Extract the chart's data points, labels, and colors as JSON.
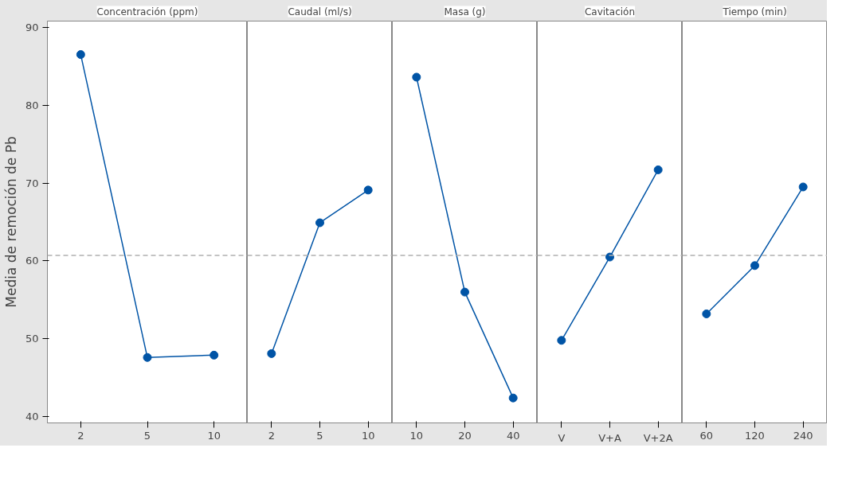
{
  "chart_data": [
    {
      "type": "line",
      "title": "Concentración (ppm)",
      "ylabel": "Media de remoción de Pb",
      "categories": [
        "2",
        "5",
        "10"
      ],
      "series": [
        {
          "color": "#0054a6",
          "values": [
            86.5,
            47.6,
            47.9
          ]
        }
      ],
      "ylim": [
        39.2,
        90.8
      ],
      "yticks": [
        40,
        50,
        60,
        70,
        80,
        90
      ],
      "ref_lines": [
        {
          "axis": "y",
          "value": 60.7,
          "color": "#b0b0b0",
          "line_style": "dashed"
        }
      ],
      "marker": "circle",
      "line_style": "solid",
      "grid": false
    },
    {
      "type": "line",
      "title": "Caudal (ml/s)",
      "categories": [
        "2",
        "5",
        "10"
      ],
      "series": [
        {
          "color": "#0054a6",
          "values": [
            48.1,
            64.9,
            69.1
          ]
        }
      ],
      "ylim": [
        39.2,
        90.8
      ],
      "tick_labels": "x",
      "ref_lines": [
        {
          "axis": "y",
          "value": 60.7,
          "color": "#b0b0b0",
          "line_style": "dashed"
        }
      ],
      "marker": "circle",
      "line_style": "solid",
      "grid": false
    },
    {
      "type": "line",
      "title": "Masa (g)",
      "categories": [
        "10",
        "20",
        "40"
      ],
      "series": [
        {
          "color": "#0054a6",
          "values": [
            83.6,
            56.0,
            42.4
          ]
        }
      ],
      "ylim": [
        39.2,
        90.8
      ],
      "tick_labels": "x",
      "ref_lines": [
        {
          "axis": "y",
          "value": 60.7,
          "color": "#b0b0b0",
          "line_style": "dashed"
        }
      ],
      "marker": "circle",
      "line_style": "solid",
      "grid": false
    },
    {
      "type": "line",
      "title": "Cavitación",
      "categories": [
        "V",
        "V+A",
        "V+2A"
      ],
      "series": [
        {
          "color": "#0054a6",
          "values": [
            49.8,
            60.5,
            71.7
          ]
        }
      ],
      "ylim": [
        39.2,
        90.8
      ],
      "tick_labels": "x",
      "ref_lines": [
        {
          "axis": "y",
          "value": 60.7,
          "color": "#b0b0b0",
          "line_style": "dashed"
        }
      ],
      "marker": "circle",
      "line_style": "solid",
      "grid": false
    },
    {
      "type": "line",
      "title": "Tiempo (min)",
      "categories": [
        "60",
        "120",
        "240"
      ],
      "series": [
        {
          "color": "#0054a6",
          "values": [
            53.2,
            59.4,
            69.5
          ]
        }
      ],
      "ylim": [
        39.2,
        90.8
      ],
      "tick_labels": "x",
      "ref_lines": [
        {
          "axis": "y",
          "value": 60.7,
          "color": "#b0b0b0",
          "line_style": "dashed"
        }
      ],
      "marker": "circle",
      "line_style": "solid",
      "grid": false
    }
  ]
}
